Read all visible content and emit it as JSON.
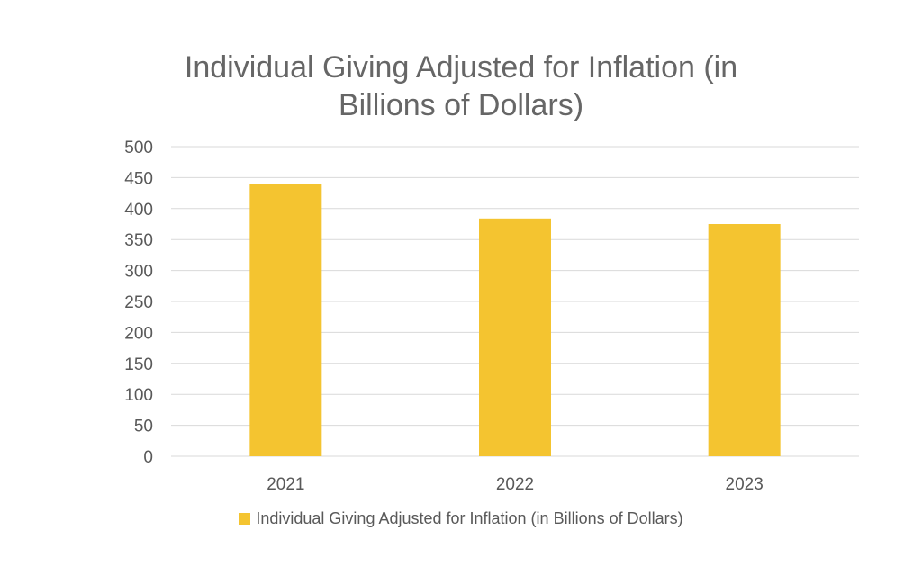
{
  "chart_data": {
    "type": "bar",
    "title_lines": [
      "Individual Giving Adjusted for Inflation (in",
      "Billions of Dollars)"
    ],
    "categories": [
      "2021",
      "2022",
      "2023"
    ],
    "series": [
      {
        "name": "Individual Giving Adjusted for Inflation (in Billions of Dollars)",
        "values": [
          440,
          384,
          375
        ]
      }
    ],
    "ylim": [
      0,
      500
    ],
    "yticks": [
      "0",
      "50",
      "100",
      "150",
      "200",
      "250",
      "300",
      "350",
      "400",
      "450",
      "500"
    ],
    "grid": true,
    "legend_position": "bottom",
    "bar_color": "#F4C430",
    "grid_color": "#D9D9D9"
  }
}
